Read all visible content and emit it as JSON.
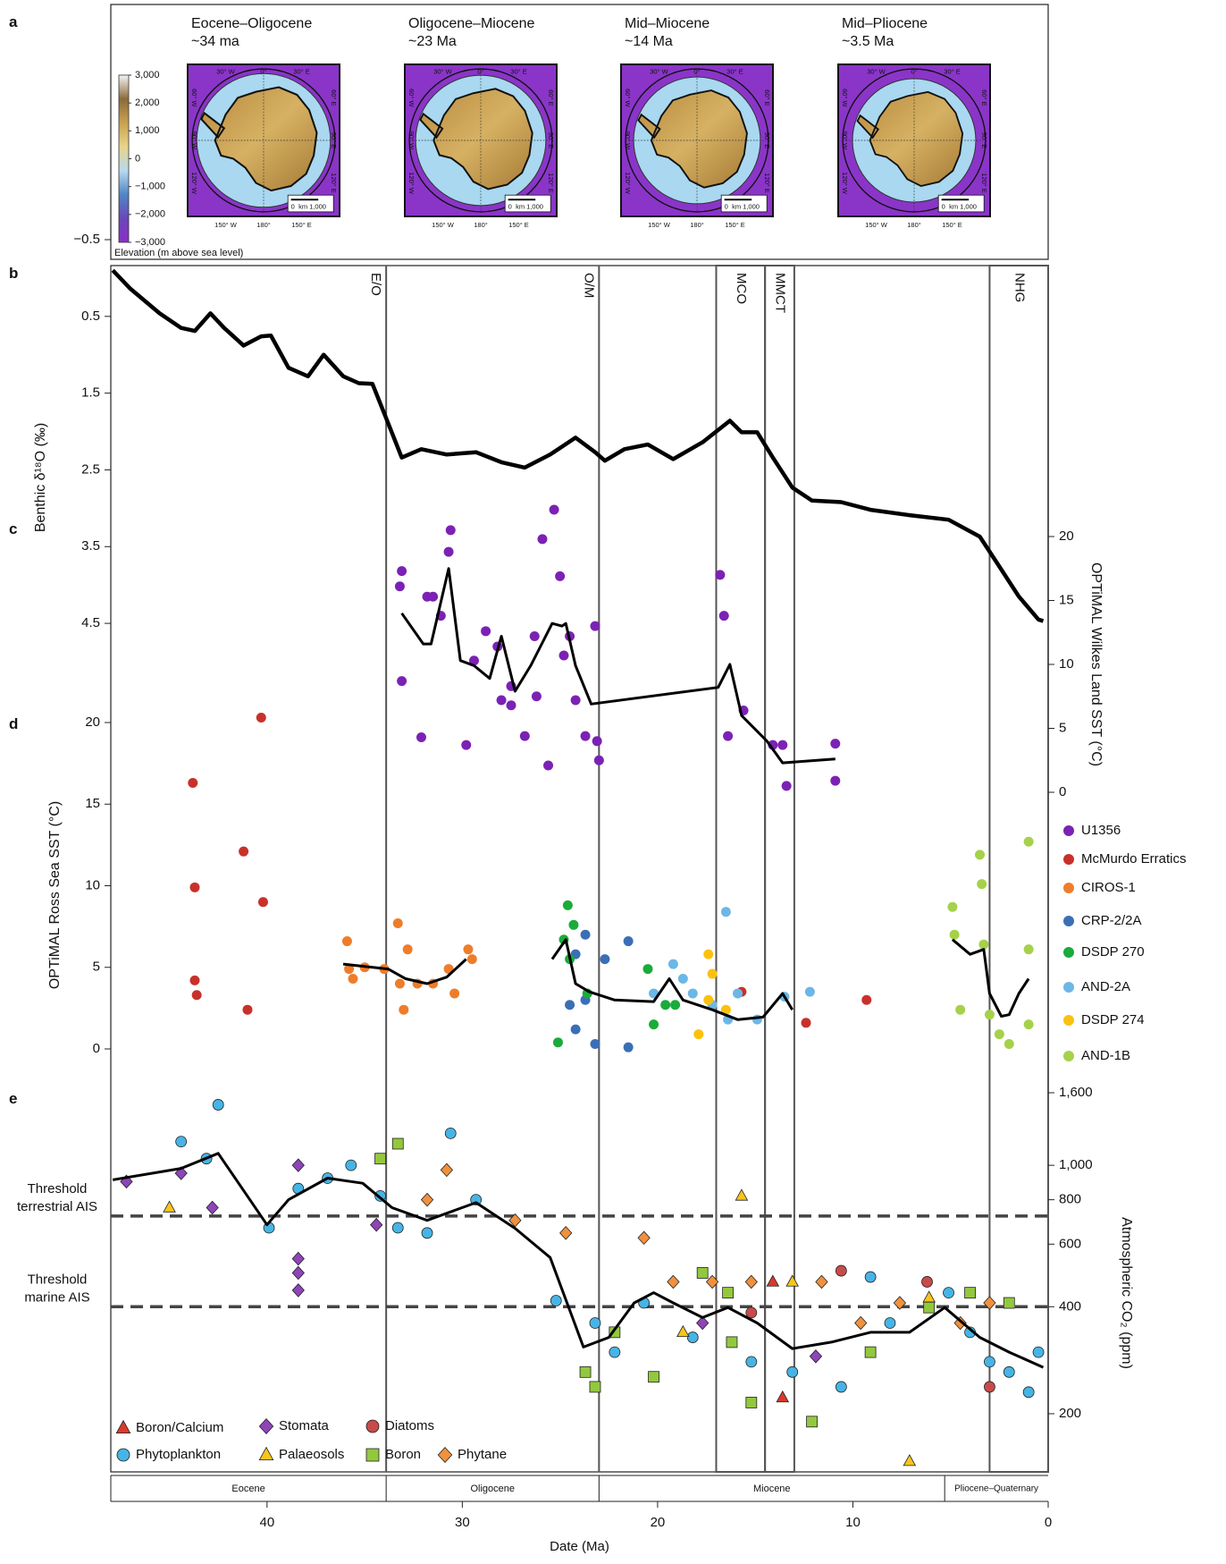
{
  "chart_data": [
    {
      "type": "map",
      "panel": "a",
      "maps": [
        {
          "title": "Eocene–Oligocene",
          "subtitle": "~34 ma"
        },
        {
          "title": "Oligocene–Miocene",
          "subtitle": "~23 Ma"
        },
        {
          "title": "Mid–Miocene",
          "subtitle": "~14 Ma"
        },
        {
          "title": "Mid–Pliocene",
          "subtitle": "~3.5 Ma"
        }
      ],
      "graticule": [
        "30° W",
        "0°",
        "30° E",
        "60° W",
        "90° W",
        "120° W",
        "60° E",
        "90° E",
        "120° E",
        "150° W",
        "180°",
        "150° E"
      ],
      "scale": [
        "0",
        "km 1,000"
      ],
      "colorbar": {
        "label": "Elevation (m above sea level)",
        "lim": [
          -3000,
          3000
        ],
        "colors": [
          "#8a2fc7",
          "#6a47b8",
          "#4f86c6",
          "#b8d9ef",
          "#e8d48a",
          "#c9a24f",
          "#8b6a3a",
          "#f5f5f5"
        ],
        "ticks": [
          {
            "value": 3000,
            "label": "3,000"
          },
          {
            "value": 2000,
            "label": "2,000"
          },
          {
            "value": 1000,
            "label": "1,000"
          },
          0,
          {
            "value": -1000,
            "label": "−1,000"
          },
          {
            "value": -2000,
            "label": "−2,000"
          },
          {
            "value": -3000,
            "label": "−3,000"
          }
        ]
      }
    },
    {
      "type": "line",
      "panel": "b",
      "y_label": "Benthic δ¹⁸O (‰)",
      "y_axis": "left",
      "y_reversed": true,
      "color": "#000000",
      "xlim": [
        48,
        0
      ],
      "ylim": [
        -0.5,
        5
      ],
      "yticks": [
        {
          "value": -0.5,
          "label": "−0.5"
        },
        0.5,
        1.5,
        2.5,
        3.5,
        4.5
      ],
      "x": [
        47.9,
        47,
        45.5,
        44.4,
        43.7,
        42.9,
        42.2,
        41.2,
        40.3,
        39.8,
        38.9,
        37.9,
        37.1,
        36.1,
        35.3,
        34.6,
        33.8,
        33.1,
        32.1,
        30.8,
        29.3,
        28,
        26.8,
        25.5,
        24.2,
        23.2,
        22.7,
        21.7,
        20.5,
        19.2,
        17.7,
        16.3,
        15.7,
        14.9,
        14.1,
        13.1,
        12.1,
        10.6,
        9.1,
        7.1,
        5.1,
        3.5,
        2.5,
        1.5,
        0.5,
        0.25
      ],
      "values": [
        -0.1,
        0.14,
        0.46,
        0.65,
        0.69,
        0.46,
        0.65,
        0.88,
        0.76,
        0.75,
        1.17,
        1.28,
        1,
        1.28,
        1.37,
        1.38,
        1.89,
        2.34,
        2.23,
        2.3,
        2.27,
        2.4,
        2.47,
        2.3,
        2.08,
        2.27,
        2.38,
        2.23,
        2.17,
        2.36,
        2.14,
        1.86,
        2.01,
        2.01,
        2.34,
        2.73,
        2.9,
        2.92,
        3.02,
        3.09,
        3.15,
        3.37,
        3.76,
        4.15,
        4.45,
        4.47
      ],
      "events": [
        {
          "label": "E/O",
          "start": 33.9
        },
        {
          "label": "O/M",
          "start": 23
        },
        {
          "label": "MCO",
          "start": 17,
          "end": 14.5
        },
        {
          "label": "MMCT",
          "start": 14.5,
          "end": 13
        },
        {
          "label": "NHG",
          "start": 3,
          "end": 0
        }
      ]
    },
    {
      "type": "scatter",
      "panel": "c",
      "y_label": "OPTiMAL Wilkes Land SST (°C)",
      "y_axis": "right",
      "xlim": [
        48,
        0
      ],
      "ylim": [
        0,
        20
      ],
      "yticks": [
        0,
        5,
        10,
        15,
        20
      ],
      "series": [
        {
          "name": "U1356",
          "color": "#7b22b5",
          "x": [
            33.1,
            33.2,
            33.1,
            32.1,
            31.8,
            31.5,
            31.1,
            30.7,
            30.6,
            29.8,
            29.4,
            28.8,
            28.2,
            28.0,
            27.5,
            27.5,
            26.8,
            26.3,
            26.2,
            25.9,
            25.6,
            25.3,
            25.0,
            24.8,
            24.5,
            24.2,
            23.7,
            23.2,
            23.1,
            23.0,
            16.8,
            16.6,
            16.4,
            15.6,
            14.1,
            13.6,
            13.4,
            10.9,
            10.9
          ],
          "values": [
            17.3,
            16.1,
            8.7,
            4.3,
            15.3,
            15.3,
            13.8,
            18.8,
            20.5,
            3.7,
            10.3,
            12.6,
            11.4,
            7.2,
            6.8,
            8.3,
            4.4,
            12.2,
            7.5,
            19.8,
            2.1,
            22.1,
            16.9,
            10.7,
            12.2,
            7.2,
            4.4,
            13.0,
            4.0,
            2.5,
            17.0,
            13.8,
            4.4,
            6.4,
            3.7,
            3.7,
            0.5,
            3.8,
            0.9
          ]
        }
      ],
      "trend": [
        {
          "x": [
            33.1,
            32.0,
            31.6,
            30.7,
            30.1,
            29.4,
            28.6,
            28.0,
            27.3,
            26.5,
            26.0,
            25.4,
            24.9,
            24.7,
            24.2,
            23.4,
            16.9,
            16.3,
            15.7,
            14.4,
            13.6,
            10.9
          ],
          "values": [
            14.0,
            11.6,
            11.6,
            17.5,
            10.3,
            9.9,
            8.9,
            12.2,
            7.9,
            9.9,
            11.4,
            13.2,
            13.0,
            13.2,
            9.9,
            6.9,
            8.2,
            10.0,
            6.0,
            4.0,
            2.3,
            2.6
          ]
        }
      ]
    },
    {
      "type": "scatter",
      "panel": "d",
      "y_label": "OPTiMAL Ross Sea SST (°C)",
      "y_axis": "left",
      "legend": "right",
      "xlim": [
        48,
        0
      ],
      "ylim": [
        0,
        20
      ],
      "yticks": [
        0,
        5,
        10,
        15,
        20
      ],
      "series": [
        {
          "name": "McMurdo Erratics",
          "color": "#c8312b",
          "x": [
            43.8,
            40.3,
            43.7,
            41.2,
            40.2,
            43.7,
            43.6,
            41.0,
            15.7,
            12.4,
            9.3
          ],
          "values": [
            16.3,
            20.3,
            9.9,
            12.1,
            9.0,
            4.2,
            3.3,
            2.4,
            3.5,
            1.6,
            3.0
          ]
        },
        {
          "name": "CIROS-1",
          "color": "#ee7d2b",
          "x": [
            35.9,
            35.8,
            35.6,
            35.0,
            34.0,
            33.3,
            33.2,
            33.0,
            32.8,
            32.3,
            31.5,
            30.7,
            30.4,
            29.7,
            29.5
          ],
          "values": [
            6.6,
            4.9,
            4.3,
            5.0,
            4.9,
            7.7,
            4.0,
            2.4,
            6.1,
            4.0,
            4.0,
            4.9,
            3.4,
            6.1,
            5.5
          ]
        },
        {
          "name": "CRP-2/2A",
          "color": "#3a6fb6",
          "x": [
            24.2,
            23.7,
            23.7,
            23.2,
            22.7,
            21.5,
            21.5,
            24.2,
            24.5
          ],
          "values": [
            1.2,
            3.0,
            7.0,
            0.3,
            5.5,
            6.6,
            0.1,
            5.8,
            2.7
          ]
        },
        {
          "name": "DSDP 270",
          "color": "#1aab3a",
          "x": [
            25.1,
            24.6,
            24.3,
            24.8,
            24.5,
            23.6,
            20.5,
            20.2,
            19.6,
            19.1
          ],
          "values": [
            0.4,
            8.8,
            7.6,
            6.7,
            5.5,
            3.4,
            4.9,
            1.5,
            2.7,
            2.7
          ]
        },
        {
          "name": "AND-2A",
          "color": "#6cb7e6",
          "x": [
            16.5,
            18.7,
            18.2,
            17.2,
            16.4,
            15.9,
            20.2,
            19.2,
            14.9,
            13.5,
            12.2
          ],
          "values": [
            8.4,
            4.3,
            3.4,
            2.7,
            1.8,
            3.4,
            3.4,
            5.2,
            1.8,
            3.2,
            3.5
          ]
        },
        {
          "name": "DSDP 274",
          "color": "#fcc10e",
          "x": [
            17.4,
            17.4,
            17.9,
            17.2,
            16.5
          ],
          "values": [
            5.8,
            3.0,
            0.9,
            4.6,
            2.4
          ]
        },
        {
          "name": "AND-1B",
          "color": "#a6d14a",
          "x": [
            4.9,
            4.8,
            4.5,
            3.5,
            3.4,
            3.3,
            3.0,
            2.5,
            2.0,
            1.0,
            1.0,
            1.0
          ],
          "values": [
            8.7,
            7.0,
            2.4,
            11.9,
            10.1,
            6.4,
            2.1,
            0.9,
            0.3,
            12.7,
            6.1,
            1.5
          ]
        }
      ],
      "trend": [
        {
          "x": [
            36.1,
            33.8,
            32.9,
            31.8,
            30.8,
            29.8
          ],
          "values": [
            5.2,
            4.9,
            4.3,
            4.0,
            4.4,
            5.5
          ]
        },
        {
          "x": [
            25.4,
            24.7,
            24.2,
            23.5,
            22.2,
            20.2,
            19.4,
            18.7,
            17.2,
            15.9,
            14.6,
            13.6,
            13.1
          ],
          "values": [
            5.5,
            6.7,
            4.0,
            3.5,
            3.0,
            2.9,
            4.3,
            3.0,
            2.4,
            1.8,
            1.95,
            3.4,
            2.4
          ]
        },
        {
          "x": [
            4.9,
            4.0,
            3.3,
            3.0,
            2.4,
            2.0,
            1.5,
            1.0
          ],
          "values": [
            6.7,
            5.8,
            6.1,
            3.4,
            2.0,
            2.1,
            3.4,
            4.3
          ]
        }
      ]
    },
    {
      "type": "scatter",
      "panel": "e",
      "y_label": "Atmospheric CO₂ (ppm)",
      "y_axis": "right",
      "log": true,
      "legend": "lower left",
      "xlim": [
        48,
        0
      ],
      "xticks": [
        40,
        30,
        20,
        10,
        0
      ],
      "x_label": "Date (Ma)",
      "ylim": [
        138,
        1600
      ],
      "yticks": [
        200,
        400,
        600,
        800,
        {
          "value": 1000,
          "label": "1,000"
        },
        {
          "value": 1600,
          "label": "1,600"
        }
      ],
      "thresholds": [
        {
          "label": [
            "Threshold",
            "terrestrial AIS"
          ],
          "value": 720
        },
        {
          "label": [
            "Threshold",
            "marine AIS"
          ],
          "value": 400
        }
      ],
      "epochs": [
        {
          "label": "Eocene",
          "start": 48,
          "end": 33.9
        },
        {
          "label": "Oligocene",
          "start": 33.9,
          "end": 23
        },
        {
          "label": "Miocene",
          "start": 23,
          "end": 5.3
        },
        {
          "label": "Pliocene–Quaternary",
          "start": 5.3,
          "end": 0
        }
      ],
      "series": [
        {
          "name": "Boron/Calcium",
          "color": "#d93a2a",
          "marker": "triangle",
          "x": [
            13.6,
            14.1
          ],
          "values": [
            222,
            470
          ]
        },
        {
          "name": "Phytoplankton",
          "color": "#47b4e6",
          "marker": "circle",
          "x": [
            42.5,
            44.4,
            43.1,
            39.9,
            38.4,
            36.9,
            35.7,
            34.2,
            33.3,
            31.8,
            30.6,
            29.3,
            25.2,
            23.2,
            22.2,
            20.7,
            18.2,
            15.2,
            13.1,
            10.6,
            9.1,
            8.1,
            5.1,
            4.0,
            3.0,
            2.0,
            1.0,
            0.5
          ],
          "values": [
            1480,
            1166,
            1044,
            667,
            860,
            920,
            1000,
            820,
            667,
            645,
            1230,
            800,
            416,
            360,
            298,
            410,
            328,
            280,
            262,
            238,
            485,
            360,
            438,
            339,
            280,
            262,
            230,
            298
          ]
        },
        {
          "name": "Stomata",
          "color": "#8e45b8",
          "marker": "diamond",
          "x": [
            47.2,
            44.4,
            42.8,
            38.4,
            38.4,
            38.4,
            38.4,
            34.4,
            11.9,
            17.7
          ],
          "values": [
            900,
            950,
            760,
            1000,
            546,
            498,
            445,
            680,
            290,
            360
          ]
        },
        {
          "name": "Palaeosols",
          "color": "#f7c51b",
          "marker": "triangle",
          "x": [
            45,
            15.7,
            13.1,
            7.1,
            18.7,
            6.1
          ],
          "values": [
            760,
            820,
            470,
            147,
            339,
            424
          ]
        },
        {
          "name": "Diatoms",
          "color": "#c94a4a",
          "marker": "circle",
          "x": [
            10.6,
            6.2,
            3.0,
            15.2
          ],
          "values": [
            505,
            470,
            238,
            385
          ]
        },
        {
          "name": "Boron",
          "color": "#93c83e",
          "marker": "square",
          "x": [
            33.3,
            34.2,
            23.7,
            23.2,
            22.2,
            20.2,
            17.7,
            16.4,
            16.2,
            15.2,
            12.1,
            9.1,
            6.1,
            4.0,
            2.0
          ],
          "values": [
            1150,
            1044,
            262,
            238,
            339,
            254,
            498,
            438,
            318,
            215,
            190,
            298,
            398,
            438,
            410
          ]
        },
        {
          "name": "Phytane",
          "color": "#f0913e",
          "marker": "diamond",
          "x": [
            31.8,
            30.8,
            27.3,
            24.7,
            20.7,
            19.2,
            17.2,
            15.2,
            11.6,
            9.6,
            7.6,
            4.5,
            3.0
          ],
          "values": [
            800,
            970,
            700,
            645,
            625,
            470,
            470,
            470,
            470,
            360,
            410,
            360,
            410
          ]
        }
      ],
      "trend": [
        {
          "x": [
            47.9,
            44.4,
            42.5,
            40,
            38.9,
            36.9,
            35.1,
            33.6,
            31.8,
            29.3,
            27.3,
            25.5,
            23.8,
            22.5,
            21.2,
            20.2,
            19.2,
            17.7,
            16.4,
            14.9,
            13.1,
            11.1,
            9.1,
            7.1,
            5.3,
            3.5,
            2.0,
            0.25
          ],
          "values": [
            910,
            980,
            1080,
            680,
            800,
            920,
            890,
            760,
            700,
            785,
            665,
            550,
            308,
            328,
            410,
            438,
            410,
            373,
            398,
            360,
            305,
            318,
            339,
            339,
            398,
            328,
            298,
            270
          ]
        }
      ]
    }
  ]
}
